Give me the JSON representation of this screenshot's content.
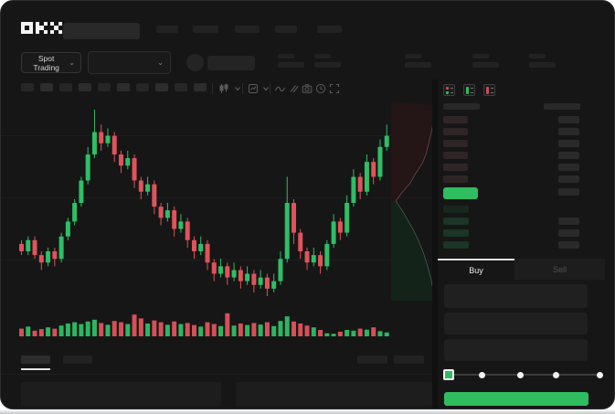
{
  "app": {
    "name": "OKX"
  },
  "colors": {
    "up": "#2fbe66",
    "down": "#df535b",
    "accent_green": "#2ebd5f",
    "window_bg": "#161616"
  },
  "header": {
    "logo_text": "OKX"
  },
  "market_bar": {
    "pair_selector_label": "Spot Trading",
    "chevron": "⌄"
  },
  "toolbar": {
    "icon_names": [
      "candlestick-interval-icon",
      "chevron-down-icon",
      "indicators-icon",
      "chevron-down-icon",
      "line-type-icon",
      "drawing-tools-icon",
      "camera-icon",
      "history-icon",
      "fullscreen-icon"
    ],
    "placeholder_count": 10
  },
  "orderbook": {
    "view_icons": [
      "orderbook-combined-icon",
      "orderbook-bids-icon",
      "orderbook-asks-icon"
    ],
    "ask_rows": 6,
    "bid_rows": 4,
    "bid_right_bar_rows": [
      1,
      2,
      3
    ]
  },
  "trade_panel": {
    "tabs": [
      {
        "label": "Buy",
        "active": true
      },
      {
        "label": "Sell",
        "active": false
      }
    ],
    "input_count": 3,
    "slider_stops": 5
  },
  "chart_data": {
    "type": "candlestick+volume+depth",
    "title": "",
    "xlabel": "",
    "ylabel": "",
    "grid": "faint-horizontal",
    "candles_ohlc": [
      [
        52,
        50,
        49,
        53
      ],
      [
        50,
        53,
        49,
        54
      ],
      [
        53,
        49,
        48,
        54
      ],
      [
        49,
        47,
        45,
        50
      ],
      [
        47,
        50,
        46,
        51
      ],
      [
        50,
        48,
        46,
        51
      ],
      [
        48,
        54,
        47,
        55
      ],
      [
        54,
        58,
        53,
        59
      ],
      [
        58,
        63,
        57,
        64
      ],
      [
        63,
        69,
        62,
        70
      ],
      [
        69,
        76,
        68,
        78
      ],
      [
        76,
        82,
        75,
        88
      ],
      [
        82,
        79,
        77,
        84
      ],
      [
        79,
        81,
        78,
        83
      ],
      [
        81,
        76,
        74,
        82
      ],
      [
        76,
        73,
        71,
        77
      ],
      [
        73,
        75,
        72,
        77
      ],
      [
        75,
        69,
        67,
        76
      ],
      [
        69,
        66,
        64,
        70
      ],
      [
        66,
        68,
        65,
        70
      ],
      [
        68,
        62,
        60,
        69
      ],
      [
        62,
        59,
        57,
        63
      ],
      [
        59,
        61,
        58,
        63
      ],
      [
        61,
        56,
        54,
        62
      ],
      [
        56,
        58,
        55,
        60
      ],
      [
        58,
        53,
        51,
        59
      ],
      [
        53,
        50,
        48,
        54
      ],
      [
        50,
        52,
        49,
        54
      ],
      [
        52,
        47,
        45,
        53
      ],
      [
        47,
        44,
        42,
        48
      ],
      [
        44,
        46,
        43,
        48
      ],
      [
        46,
        43,
        41,
        47
      ],
      [
        43,
        45,
        42,
        47
      ],
      [
        45,
        42,
        40,
        46
      ],
      [
        42,
        44,
        41,
        46
      ],
      [
        44,
        41,
        39,
        45
      ],
      [
        41,
        43,
        40,
        45
      ],
      [
        43,
        40,
        38,
        44
      ],
      [
        40,
        42,
        39,
        44
      ],
      [
        42,
        48,
        41,
        50
      ],
      [
        48,
        63,
        47,
        70
      ],
      [
        63,
        55,
        52,
        64
      ],
      [
        55,
        50,
        48,
        56
      ],
      [
        50,
        47,
        45,
        51
      ],
      [
        47,
        49,
        46,
        51
      ],
      [
        49,
        46,
        44,
        50
      ],
      [
        46,
        52,
        45,
        53
      ],
      [
        52,
        58,
        51,
        60
      ],
      [
        58,
        55,
        53,
        59
      ],
      [
        55,
        63,
        54,
        65
      ],
      [
        63,
        70,
        62,
        72
      ],
      [
        70,
        66,
        64,
        71
      ],
      [
        66,
        74,
        65,
        76
      ],
      [
        74,
        70,
        68,
        75
      ],
      [
        70,
        78,
        69,
        80
      ],
      [
        78,
        81,
        77,
        84
      ]
    ],
    "volumes": [
      30,
      38,
      22,
      28,
      35,
      30,
      42,
      50,
      55,
      48,
      58,
      65,
      52,
      45,
      60,
      55,
      48,
      85,
      70,
      50,
      62,
      55,
      45,
      58,
      48,
      52,
      44,
      38,
      55,
      48,
      40,
      90,
      42,
      50,
      44,
      52,
      46,
      55,
      40,
      60,
      78,
      58,
      50,
      42,
      35,
      25,
      12,
      10,
      18,
      25,
      22,
      30,
      26,
      35,
      20,
      15
    ],
    "depth": {
      "asks": [
        [
          0.95,
          0.02
        ],
        [
          0.9,
          0.08
        ],
        [
          0.86,
          0.14
        ],
        [
          0.8,
          0.2
        ],
        [
          0.74,
          0.26
        ],
        [
          0.66,
          0.31
        ],
        [
          0.52,
          0.36
        ],
        [
          0.4,
          0.41
        ],
        [
          0.22,
          0.46
        ],
        [
          0.1,
          0.5
        ]
      ],
      "bids": [
        [
          0.1,
          0.5
        ],
        [
          0.24,
          0.55
        ],
        [
          0.36,
          0.6
        ],
        [
          0.48,
          0.65
        ],
        [
          0.58,
          0.7
        ],
        [
          0.68,
          0.76
        ],
        [
          0.76,
          0.82
        ],
        [
          0.84,
          0.89
        ],
        [
          0.9,
          0.97
        ],
        [
          0.9,
          1.0
        ]
      ]
    }
  }
}
